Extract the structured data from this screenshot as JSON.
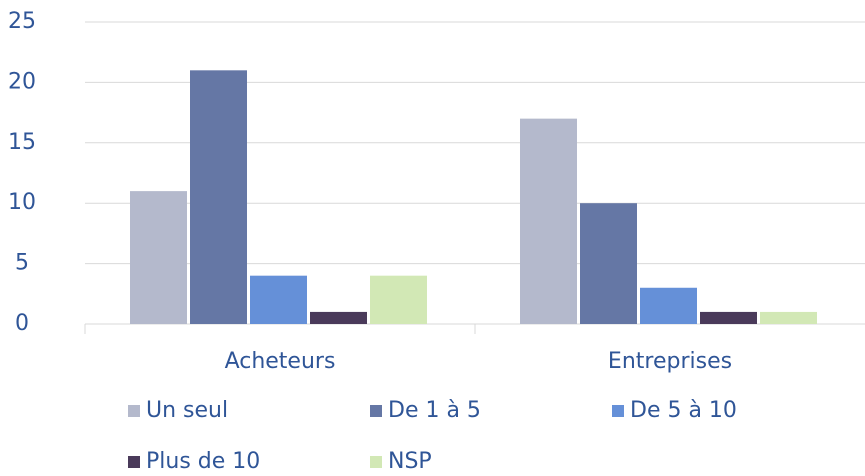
{
  "chart_data": {
    "type": "bar",
    "categories": [
      "Acheteurs",
      "Entreprises"
    ],
    "series": [
      {
        "name": "Un seul",
        "color": "#b4b9cc",
        "values": [
          11,
          17
        ]
      },
      {
        "name": "De 1 à 5",
        "color": "#6577a5",
        "values": [
          21,
          10
        ]
      },
      {
        "name": "De 5 à 10",
        "color": "#6590d8",
        "values": [
          4,
          3
        ]
      },
      {
        "name": "Plus de 10",
        "color": "#4a3a5a",
        "values": [
          1,
          1
        ]
      },
      {
        "name": "NSP",
        "color": "#d2e8b5",
        "values": [
          4,
          1
        ]
      }
    ],
    "ylim": [
      0,
      25
    ],
    "yticks": [
      0,
      5,
      10,
      15,
      20,
      25
    ],
    "grid": true
  }
}
